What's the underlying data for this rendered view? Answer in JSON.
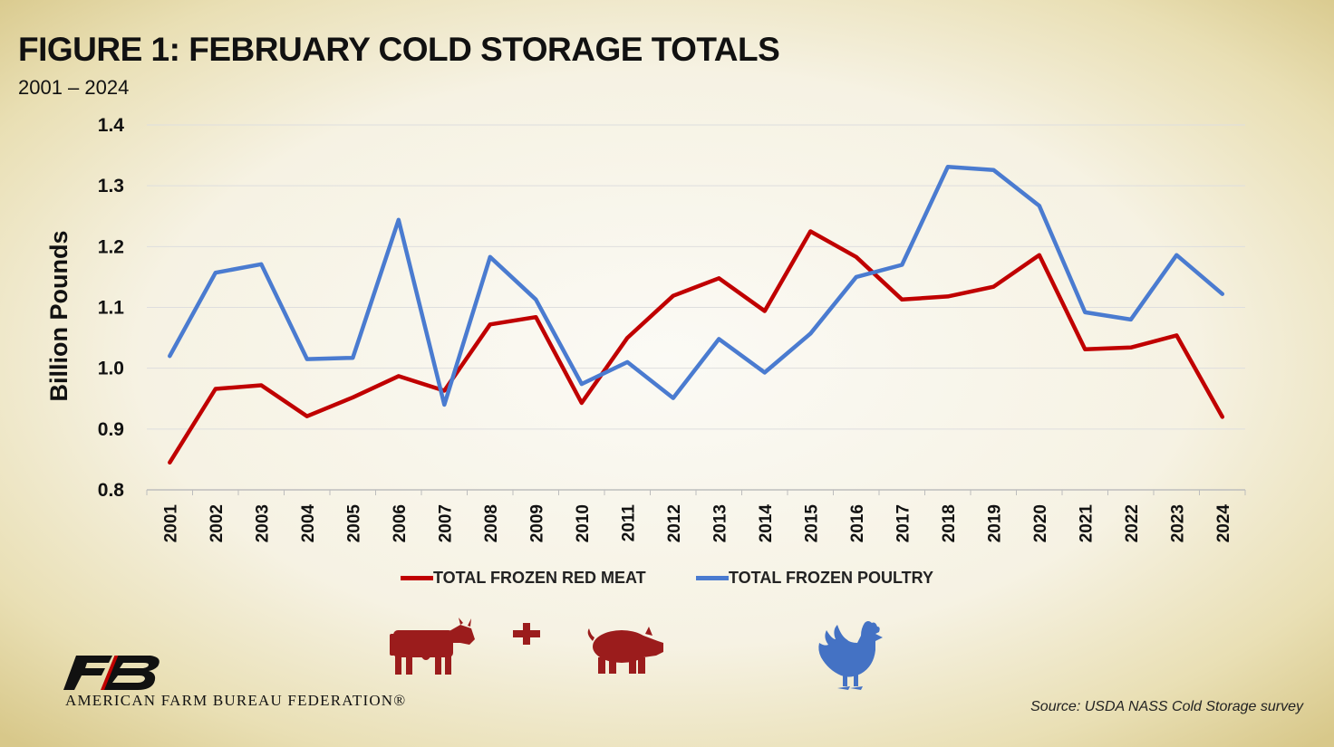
{
  "chart_data": {
    "type": "line",
    "title": "FIGURE 1: FEBRUARY COLD STORAGE TOTALS",
    "subtitle": "2001 – 2024",
    "xlabel": "",
    "ylabel": "Billion Pounds",
    "ylim": [
      0.8,
      1.4
    ],
    "yticks": [
      "0.8",
      "0.9",
      "1.0",
      "1.1",
      "1.2",
      "1.3",
      "1.4"
    ],
    "grid": true,
    "legend_position": "bottom",
    "x": [
      "2001",
      "2002",
      "2003",
      "2004",
      "2005",
      "2006",
      "2007",
      "2008",
      "2009",
      "2010",
      "2011",
      "2012",
      "2013",
      "2014",
      "2015",
      "2016",
      "2017",
      "2018",
      "2019",
      "2020",
      "2021",
      "2022",
      "2023",
      "2024"
    ],
    "series": [
      {
        "name": "TOTAL FROZEN RED MEAT",
        "color": "#c00000",
        "values": [
          0.845,
          0.966,
          0.972,
          0.921,
          0.952,
          0.987,
          0.963,
          1.072,
          1.084,
          0.943,
          1.05,
          1.119,
          1.148,
          1.094,
          1.225,
          1.183,
          1.113,
          1.118,
          1.134,
          1.186,
          1.031,
          1.034,
          1.054,
          0.92
        ]
      },
      {
        "name": "TOTAL FROZEN POULTRY",
        "color": "#4a7bd0",
        "values": [
          1.02,
          1.157,
          1.171,
          1.015,
          1.017,
          1.244,
          0.94,
          1.183,
          1.113,
          0.974,
          1.01,
          0.951,
          1.048,
          0.993,
          1.057,
          1.15,
          1.17,
          1.331,
          1.326,
          1.267,
          1.092,
          1.08,
          1.186,
          1.122
        ]
      }
    ]
  },
  "branding": {
    "org_name": "AMERICAN FARM BUREAU FEDERATION®",
    "logo_icon": "fb-logo-icon"
  },
  "icons": {
    "cow": "cow-icon",
    "plus": "plus-icon",
    "pig": "pig-icon",
    "rooster": "rooster-icon",
    "red_color": "#9b1c1c",
    "blue_color": "#4472c4"
  },
  "source": "Source: USDA NASS Cold Storage survey"
}
